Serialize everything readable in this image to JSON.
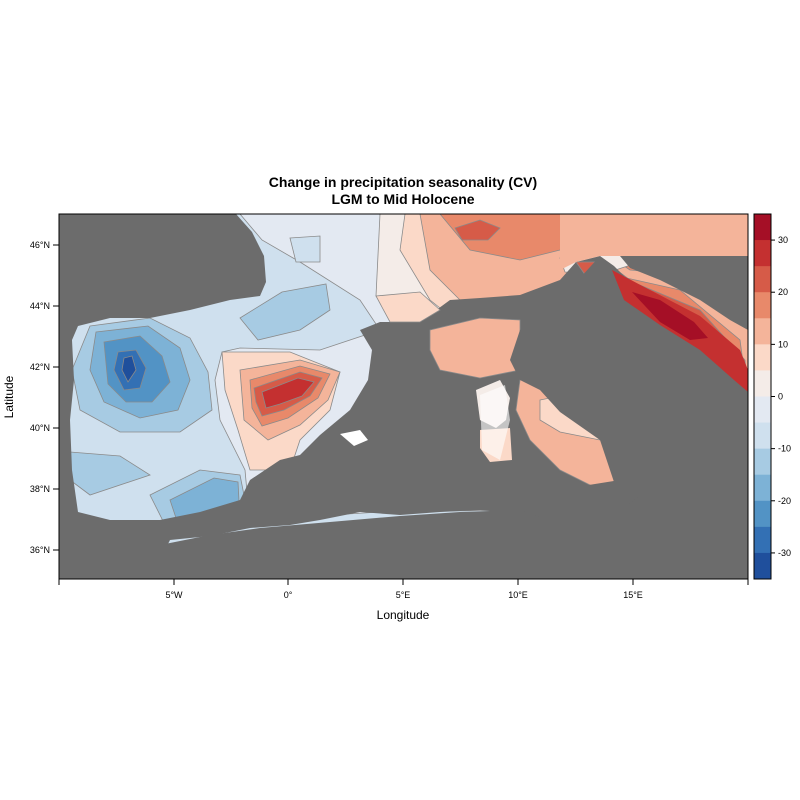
{
  "title": "Change in precipitation seasonality (CV)",
  "subtitle": "LGM to Mid Holocene",
  "xlabel": "Longitude",
  "ylabel": "Latitude",
  "x_ticks": [
    "5°W",
    "0°",
    "5°E",
    "10°E",
    "15°E"
  ],
  "y_ticks": [
    "46°N",
    "44°N",
    "42°N",
    "40°N",
    "38°N",
    "36°N"
  ],
  "colorbar": {
    "tick_labels": [
      "30",
      "20",
      "10",
      "0",
      "-10",
      "-20",
      "-30"
    ],
    "colors": [
      "#a50f26",
      "#c43030",
      "#d65b48",
      "#e8896a",
      "#f4b49a",
      "#fbd9c8",
      "#f4ece8",
      "#e3e9f2",
      "#cfe0ee",
      "#a7cbe3",
      "#7db2d6",
      "#5293c5",
      "#3370b4",
      "#1f4f9c"
    ]
  },
  "colors": {
    "land": "#6c6c6c",
    "contour_line": "#8a8a8a"
  }
}
